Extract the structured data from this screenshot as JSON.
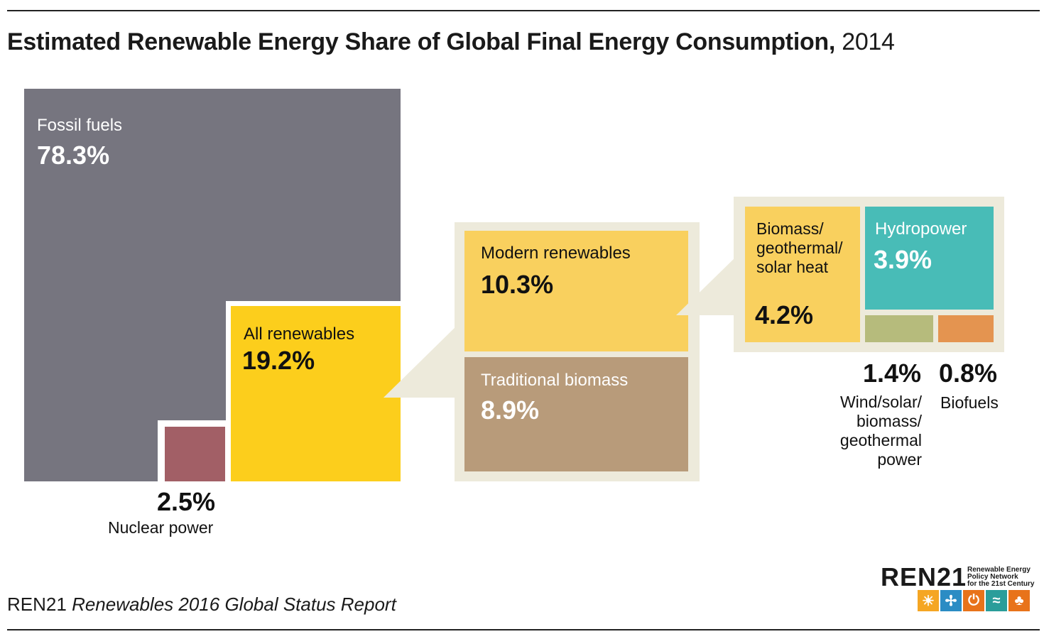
{
  "title": {
    "main": "Estimated Renewable Energy Share of Global Final Energy Consumption,",
    "year": "2014"
  },
  "source": {
    "org": "REN21",
    "report": "Renewables 2016 Global Status Report"
  },
  "logo": {
    "word": "REN21",
    "tagline": "Renewable Energy\nPolicy Network\nfor the 21st Century",
    "icons": [
      "sun-icon",
      "wind-turbine-icon",
      "power-icon",
      "waves-icon",
      "leaf-icon"
    ],
    "icon_colors": [
      "#f5a623",
      "#2b8cc4",
      "#e8731a",
      "#2a9d9a",
      "#e8731a"
    ]
  },
  "colors": {
    "fossil": "#76757f",
    "nuclear": "#a25f66",
    "all_renewables": "#fcce1c",
    "modern": "#f9d05e",
    "traditional": "#b89b7a",
    "hydro": "#48bcb7",
    "wind_solar": "#b6bb7c",
    "biofuels": "#e49450",
    "callout_bg": "#edeadb"
  },
  "chart_data": {
    "type": "treemap",
    "title": "Estimated Renewable Energy Share of Global Final Energy Consumption, 2014",
    "unit": "%",
    "segments": [
      {
        "name": "Fossil fuels",
        "value": 78.3,
        "label": "78.3%"
      },
      {
        "name": "Nuclear power",
        "value": 2.5,
        "label": "2.5%"
      },
      {
        "name": "All renewables",
        "value": 19.2,
        "label": "19.2%",
        "children": [
          {
            "name": "Modern renewables",
            "value": 10.3,
            "label": "10.3%",
            "children": [
              {
                "name": "Biomass/ geothermal/ solar heat",
                "value": 4.2,
                "label": "4.2%"
              },
              {
                "name": "Hydropower",
                "value": 3.9,
                "label": "3.9%"
              },
              {
                "name": "Wind/solar/ biomass/ geothermal power",
                "value": 1.4,
                "label": "1.4%"
              },
              {
                "name": "Biofuels",
                "value": 0.8,
                "label": "0.8%"
              }
            ]
          },
          {
            "name": "Traditional biomass",
            "value": 8.9,
            "label": "8.9%"
          }
        ]
      }
    ]
  }
}
